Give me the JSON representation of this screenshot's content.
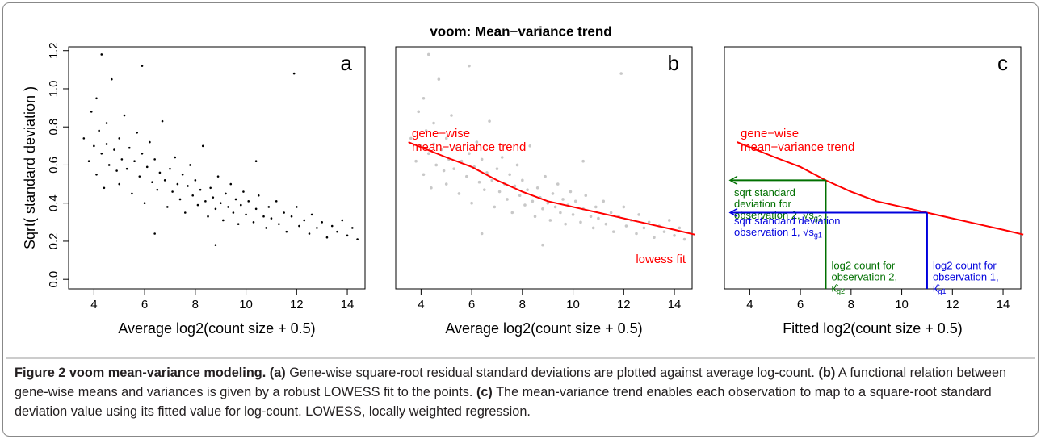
{
  "title": "voom: Mean−variance trend",
  "chart_data": [
    {
      "type": "scatter",
      "panel": "a",
      "color": "#000000",
      "xlabel": "Average log2(count size + 0.5)",
      "ylabel": "Sqrt( standard deviation )",
      "xlim": [
        3.0,
        14.7
      ],
      "ylim": [
        -0.05,
        1.22
      ],
      "xticks": [
        4,
        6,
        8,
        10,
        12,
        14
      ],
      "yticks": [
        {
          "value": 0,
          "label": "0.0"
        },
        0.2,
        0.4,
        0.6,
        0.8,
        {
          "value": 1,
          "label": "1.0"
        },
        1.2
      ],
      "x": [
        3.6,
        3.8,
        3.9,
        4.0,
        4.1,
        4.1,
        4.2,
        4.3,
        4.4,
        4.5,
        4.5,
        4.6,
        4.7,
        4.8,
        4.9,
        5.0,
        5.0,
        5.1,
        5.2,
        5.3,
        5.4,
        5.5,
        5.6,
        5.7,
        5.8,
        5.9,
        6.0,
        6.1,
        6.2,
        6.3,
        6.4,
        6.5,
        6.6,
        6.7,
        6.8,
        6.9,
        7.0,
        7.1,
        7.2,
        7.3,
        7.4,
        7.5,
        7.6,
        7.7,
        7.8,
        7.9,
        8.0,
        8.1,
        8.2,
        8.3,
        8.4,
        8.5,
        8.6,
        8.7,
        8.8,
        8.9,
        9.0,
        9.1,
        9.2,
        9.3,
        9.4,
        9.5,
        9.6,
        9.7,
        9.8,
        9.9,
        10.0,
        10.1,
        10.3,
        10.4,
        10.5,
        10.7,
        10.8,
        10.9,
        11.0,
        11.2,
        11.3,
        11.5,
        11.6,
        11.8,
        12.0,
        12.1,
        12.3,
        12.5,
        12.6,
        12.8,
        13.0,
        13.2,
        13.4,
        13.6,
        13.8,
        14.0,
        14.2,
        14.4,
        4.3,
        5.9,
        8.8,
        11.9,
        10.4,
        6.4
      ],
      "y": [
        0.74,
        0.62,
        0.88,
        0.7,
        0.55,
        0.95,
        0.78,
        0.66,
        0.48,
        0.82,
        0.71,
        0.6,
        1.05,
        0.68,
        0.57,
        0.74,
        0.5,
        0.63,
        0.86,
        0.58,
        0.69,
        0.45,
        0.62,
        0.77,
        0.54,
        0.66,
        0.4,
        0.59,
        0.72,
        0.51,
        0.63,
        0.47,
        0.56,
        0.83,
        0.52,
        0.38,
        0.58,
        0.46,
        0.64,
        0.5,
        0.42,
        0.55,
        0.35,
        0.49,
        0.6,
        0.44,
        0.52,
        0.39,
        0.47,
        0.7,
        0.41,
        0.33,
        0.48,
        0.43,
        0.37,
        0.54,
        0.4,
        0.31,
        0.45,
        0.38,
        0.5,
        0.35,
        0.42,
        0.29,
        0.39,
        0.46,
        0.34,
        0.41,
        0.3,
        0.37,
        0.44,
        0.33,
        0.27,
        0.38,
        0.32,
        0.41,
        0.29,
        0.35,
        0.25,
        0.33,
        0.38,
        0.28,
        0.31,
        0.24,
        0.34,
        0.27,
        0.3,
        0.22,
        0.28,
        0.25,
        0.31,
        0.23,
        0.27,
        0.21,
        1.18,
        1.12,
        0.18,
        1.08,
        0.62,
        0.24
      ]
    },
    {
      "type": "scatter",
      "panel": "b",
      "color": "#c8c8c8",
      "xlabel": "Average log2(count size + 0.5)",
      "xlim": [
        3.0,
        14.7
      ],
      "ylim": [
        -0.05,
        1.22
      ],
      "xticks": [
        4,
        6,
        8,
        10,
        12,
        14
      ],
      "x": [
        3.6,
        3.8,
        3.9,
        4.0,
        4.1,
        4.1,
        4.2,
        4.3,
        4.4,
        4.5,
        4.5,
        4.6,
        4.7,
        4.8,
        4.9,
        5.0,
        5.0,
        5.1,
        5.2,
        5.3,
        5.4,
        5.5,
        5.6,
        5.7,
        5.8,
        5.9,
        6.0,
        6.1,
        6.2,
        6.3,
        6.4,
        6.5,
        6.6,
        6.7,
        6.8,
        6.9,
        7.0,
        7.1,
        7.2,
        7.3,
        7.4,
        7.5,
        7.6,
        7.7,
        7.8,
        7.9,
        8.0,
        8.1,
        8.2,
        8.3,
        8.4,
        8.5,
        8.6,
        8.7,
        8.8,
        8.9,
        9.0,
        9.1,
        9.2,
        9.3,
        9.4,
        9.5,
        9.6,
        9.7,
        9.8,
        9.9,
        10.0,
        10.1,
        10.3,
        10.4,
        10.5,
        10.7,
        10.8,
        10.9,
        11.0,
        11.2,
        11.3,
        11.5,
        11.6,
        11.8,
        12.0,
        12.1,
        12.3,
        12.5,
        12.6,
        12.8,
        13.0,
        13.2,
        13.4,
        13.6,
        13.8,
        14.0,
        14.2,
        14.4,
        4.3,
        5.9,
        8.8,
        11.9,
        10.4,
        6.4
      ],
      "y": [
        0.74,
        0.62,
        0.88,
        0.7,
        0.55,
        0.95,
        0.78,
        0.66,
        0.48,
        0.82,
        0.71,
        0.6,
        1.05,
        0.68,
        0.57,
        0.74,
        0.5,
        0.63,
        0.86,
        0.58,
        0.69,
        0.45,
        0.62,
        0.77,
        0.54,
        0.66,
        0.4,
        0.59,
        0.72,
        0.51,
        0.63,
        0.47,
        0.56,
        0.83,
        0.52,
        0.38,
        0.58,
        0.46,
        0.64,
        0.5,
        0.42,
        0.55,
        0.35,
        0.49,
        0.6,
        0.44,
        0.52,
        0.39,
        0.47,
        0.7,
        0.41,
        0.33,
        0.48,
        0.43,
        0.37,
        0.54,
        0.4,
        0.31,
        0.45,
        0.38,
        0.5,
        0.35,
        0.42,
        0.29,
        0.39,
        0.46,
        0.34,
        0.41,
        0.3,
        0.37,
        0.44,
        0.33,
        0.27,
        0.38,
        0.32,
        0.41,
        0.29,
        0.35,
        0.25,
        0.33,
        0.38,
        0.28,
        0.31,
        0.24,
        0.34,
        0.27,
        0.3,
        0.22,
        0.28,
        0.25,
        0.31,
        0.23,
        0.27,
        0.21,
        1.18,
        1.12,
        0.18,
        1.08,
        0.62,
        0.24
      ],
      "trend": {
        "color": "#ff0000",
        "x": [
          3.5,
          5,
          6,
          7,
          8,
          9,
          10,
          11,
          12,
          13,
          14,
          14.8
        ],
        "y": [
          0.72,
          0.64,
          0.59,
          0.52,
          0.46,
          0.41,
          0.38,
          0.35,
          0.32,
          0.29,
          0.26,
          0.235
        ]
      },
      "trend_label": [
        "gene−wise",
        "mean−variance trend"
      ],
      "fit_label": "lowess fit"
    },
    {
      "type": "line",
      "panel": "c",
      "xlabel": "Fitted log2(count size + 0.5)",
      "xlim": [
        3.0,
        14.7
      ],
      "ylim": [
        -0.05,
        1.22
      ],
      "xticks": [
        4,
        6,
        8,
        10,
        12,
        14
      ],
      "trend": {
        "color": "#ff0000",
        "x": [
          3.5,
          5,
          6,
          7,
          8,
          9,
          10,
          11,
          12,
          13,
          14,
          14.8
        ],
        "y": [
          0.72,
          0.64,
          0.59,
          0.52,
          0.46,
          0.41,
          0.38,
          0.35,
          0.32,
          0.29,
          0.26,
          0.235
        ]
      },
      "trend_label": [
        "gene−wise",
        "mean−variance trend"
      ],
      "guides": [
        {
          "x": 7,
          "y": 0.52,
          "color": "#007000",
          "y_text": [
            "sqrt standard",
            "deviation for",
            "observation 2, √s"
          ],
          "y_sub": "g2",
          "x_text": [
            "log2 count for",
            "observation 2,",
            "κ̂"
          ],
          "x_sub": "g2"
        },
        {
          "x": 11,
          "y": 0.35,
          "color": "#0000dd",
          "y_text": [
            "sqrt standard deviation",
            "observation 1, √s"
          ],
          "y_sub": "g1",
          "x_text": [
            "log2 count for",
            "observation 1,",
            "κ̂"
          ],
          "x_sub": "g1"
        }
      ]
    }
  ],
  "caption": {
    "title": "Figure 2 voom mean-variance modeling.",
    "parts": [
      {
        "label": "(a)",
        "text": "Gene-wise square-root residual standard deviations are plotted against average log-count."
      },
      {
        "label": "(b)",
        "text": "A functional relation between gene-wise means and variances is given by a robust LOWESS fit to the points."
      },
      {
        "label": "(c)",
        "text": "The mean-variance trend enables each observation to map to a square-root standard deviation value using its fitted value for log-count. LOWESS, locally weighted regression."
      }
    ]
  }
}
